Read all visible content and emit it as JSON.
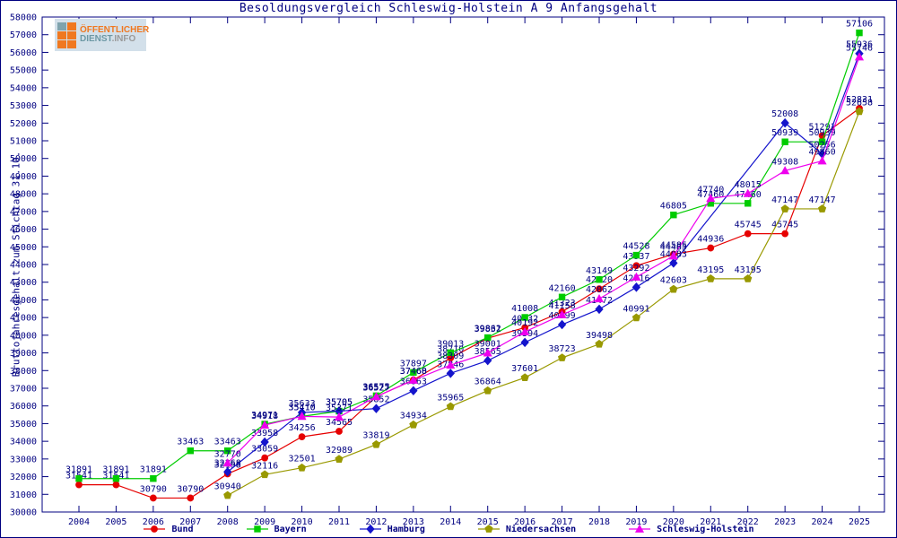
{
  "window": {
    "title": "Besoldungsvergleich Schleswig-Holstein A 9 Anfangsgehalt"
  },
  "logo": {
    "line1": "ÖFFENTLICHER",
    "line2_part1": "DIENST",
    "line2_part2": ".INFO"
  },
  "chart_data": {
    "type": "line",
    "title": "Besoldungsvergleich Schleswig-Holstein A 9 Anfangsgehalt",
    "xlabel": "",
    "ylabel": "Bruttojahresgehalt zum Stichtag 31.10.",
    "ylim": [
      30000,
      58000
    ],
    "ytick_step": 1000,
    "grid": false,
    "legend_position": "bottom",
    "axis_color": "#000080",
    "label_color": "#000080",
    "years": [
      2004,
      2005,
      2006,
      2007,
      2008,
      2009,
      2010,
      2011,
      2012,
      2013,
      2014,
      2015,
      2016,
      2017,
      2018,
      2019,
      2020,
      2021,
      2022,
      2023,
      2024,
      2025
    ],
    "series": [
      {
        "name": "Bund",
        "color": "#e60000",
        "marker": "circle",
        "points": [
          [
            2004,
            31541
          ],
          [
            2005,
            31541
          ],
          [
            2006,
            30790
          ],
          [
            2007,
            30790
          ],
          [
            2008,
            32158
          ],
          [
            2009,
            33059
          ],
          [
            2010,
            34256
          ],
          [
            2011,
            34565
          ],
          [
            2012,
            36527
          ],
          [
            2013,
            37468
          ],
          [
            2014,
            38710
          ],
          [
            2015,
            39831
          ],
          [
            2016,
            40432
          ],
          [
            2017,
            41323
          ],
          [
            2018,
            42620
          ],
          [
            2019,
            43937
          ],
          [
            2020,
            44585
          ],
          [
            2021,
            44936
          ],
          [
            2022,
            45745
          ],
          [
            2023,
            45745
          ],
          [
            2024,
            51291
          ],
          [
            2025,
            52831
          ]
        ]
      },
      {
        "name": "Bayern",
        "color": "#00cc00",
        "marker": "square",
        "points": [
          [
            2004,
            31891
          ],
          [
            2005,
            31891
          ],
          [
            2006,
            31891
          ],
          [
            2007,
            33463
          ],
          [
            2008,
            33463
          ],
          [
            2009,
            34971
          ],
          [
            2010,
            35410
          ],
          [
            2011,
            35705
          ],
          [
            2012,
            36575
          ],
          [
            2013,
            37897
          ],
          [
            2014,
            39013
          ],
          [
            2015,
            39862
          ],
          [
            2016,
            41008
          ],
          [
            2017,
            42160
          ],
          [
            2018,
            43149
          ],
          [
            2019,
            44528
          ],
          [
            2020,
            46805
          ],
          [
            2021,
            47460
          ],
          [
            2022,
            47460
          ],
          [
            2023,
            50939
          ],
          [
            2024,
            50939
          ],
          [
            2025,
            57106
          ]
        ]
      },
      {
        "name": "Hamburg",
        "color": "#1414cc",
        "marker": "diamond",
        "points": [
          [
            2008,
            32268
          ],
          [
            2009,
            33958
          ],
          [
            2010,
            35633
          ],
          [
            2011,
            35705
          ],
          [
            2012,
            35852
          ],
          [
            2013,
            36863
          ],
          [
            2014,
            37846
          ],
          [
            2015,
            38565
          ],
          [
            2016,
            39594
          ],
          [
            2017,
            40599
          ],
          [
            2018,
            41472
          ],
          [
            2019,
            42716
          ],
          [
            2020,
            44083
          ],
          [
            2023,
            52008
          ],
          [
            2024,
            50256
          ],
          [
            2025,
            55936
          ]
        ]
      },
      {
        "name": "Niedersachsen",
        "color": "#999900",
        "marker": "pentagon",
        "points": [
          [
            2008,
            30940
          ],
          [
            2009,
            32116
          ],
          [
            2010,
            32501
          ],
          [
            2011,
            32989
          ],
          [
            2012,
            33819
          ],
          [
            2013,
            34934
          ],
          [
            2014,
            35965
          ],
          [
            2015,
            36864
          ],
          [
            2016,
            37601
          ],
          [
            2017,
            38723
          ],
          [
            2018,
            39498
          ],
          [
            2019,
            40991
          ],
          [
            2020,
            42603
          ],
          [
            2021,
            43195
          ],
          [
            2022,
            43195
          ],
          [
            2023,
            47147
          ],
          [
            2024,
            47147
          ],
          [
            2025,
            52658
          ]
        ]
      },
      {
        "name": "Schleswig-Holstein",
        "color": "#ee00ee",
        "marker": "triangle",
        "points": [
          [
            2008,
            32770
          ],
          [
            2009,
            34918
          ],
          [
            2010,
            35410
          ],
          [
            2011,
            35371
          ],
          [
            2012,
            36527
          ],
          [
            2013,
            37460
          ],
          [
            2014,
            38309
          ],
          [
            2015,
            39001
          ],
          [
            2016,
            40192
          ],
          [
            2017,
            41158
          ],
          [
            2018,
            42062
          ],
          [
            2019,
            43292
          ],
          [
            2020,
            44485
          ],
          [
            2021,
            47740
          ],
          [
            2022,
            48015
          ],
          [
            2023,
            49308
          ],
          [
            2024,
            49860
          ],
          [
            2025,
            55746
          ]
        ]
      }
    ]
  }
}
